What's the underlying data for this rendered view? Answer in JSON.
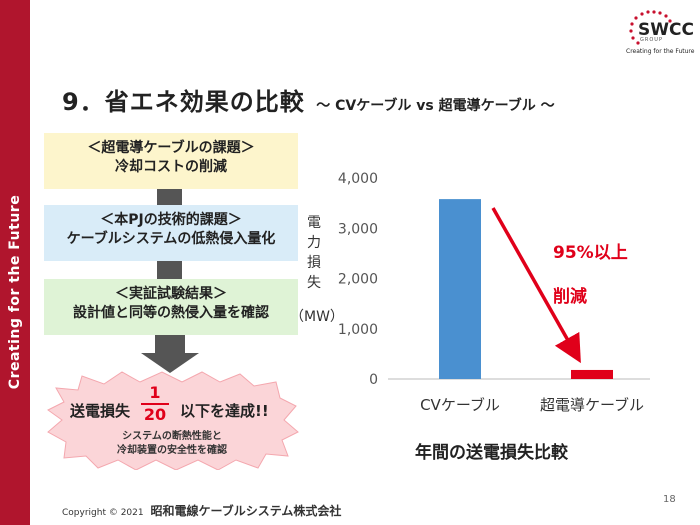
{
  "sidebar": {
    "text": "Creating for the Future"
  },
  "logo": {
    "word": "SWCC",
    "sub": "GROUP",
    "tagline": "Creating for the Future"
  },
  "title": {
    "main": "9．省エネ効果の比較",
    "sub": "～ CVケーブル  vs  超電導ケーブル ～"
  },
  "flow": {
    "box1": {
      "heading": "＜超電導ケーブルの課題＞",
      "text": "冷却コストの削減"
    },
    "box2": {
      "heading": "＜本PJの技術的課題＞",
      "text": "ケーブルシステムの低熱侵入量化"
    },
    "box3": {
      "heading": "＜実証試験結果＞",
      "text": "設計値と同等の熱侵入量を確認"
    },
    "result": {
      "prefix": "送電損失",
      "numerator": "1",
      "denominator": "20",
      "suffix": "以下を達成!!",
      "note_line1": "システムの断熱性能と",
      "note_line2": "冷却装置の安全性を確認"
    }
  },
  "chart_data": {
    "type": "bar",
    "title": "年間の送電損失比較",
    "ylabel": "電力損失",
    "yunit": "（MW）",
    "categories": [
      "CVケーブル",
      "超電導ケーブル"
    ],
    "values": [
      3580,
      180
    ],
    "colors": [
      "#4a90d0",
      "#e0001a"
    ],
    "ylim": [
      0,
      4000
    ],
    "yticks": [
      0,
      1000,
      2000,
      3000,
      4000
    ],
    "ytick_labels": [
      "0",
      "1,000",
      "2,000",
      "3,000",
      "4,000"
    ],
    "grid": false,
    "annotation_line1": "95%以上",
    "annotation_line2": "削減"
  },
  "footer": {
    "copyright": "Copyright © 2021",
    "company": "昭和電線ケーブルシステム株式会社",
    "page": "18"
  }
}
